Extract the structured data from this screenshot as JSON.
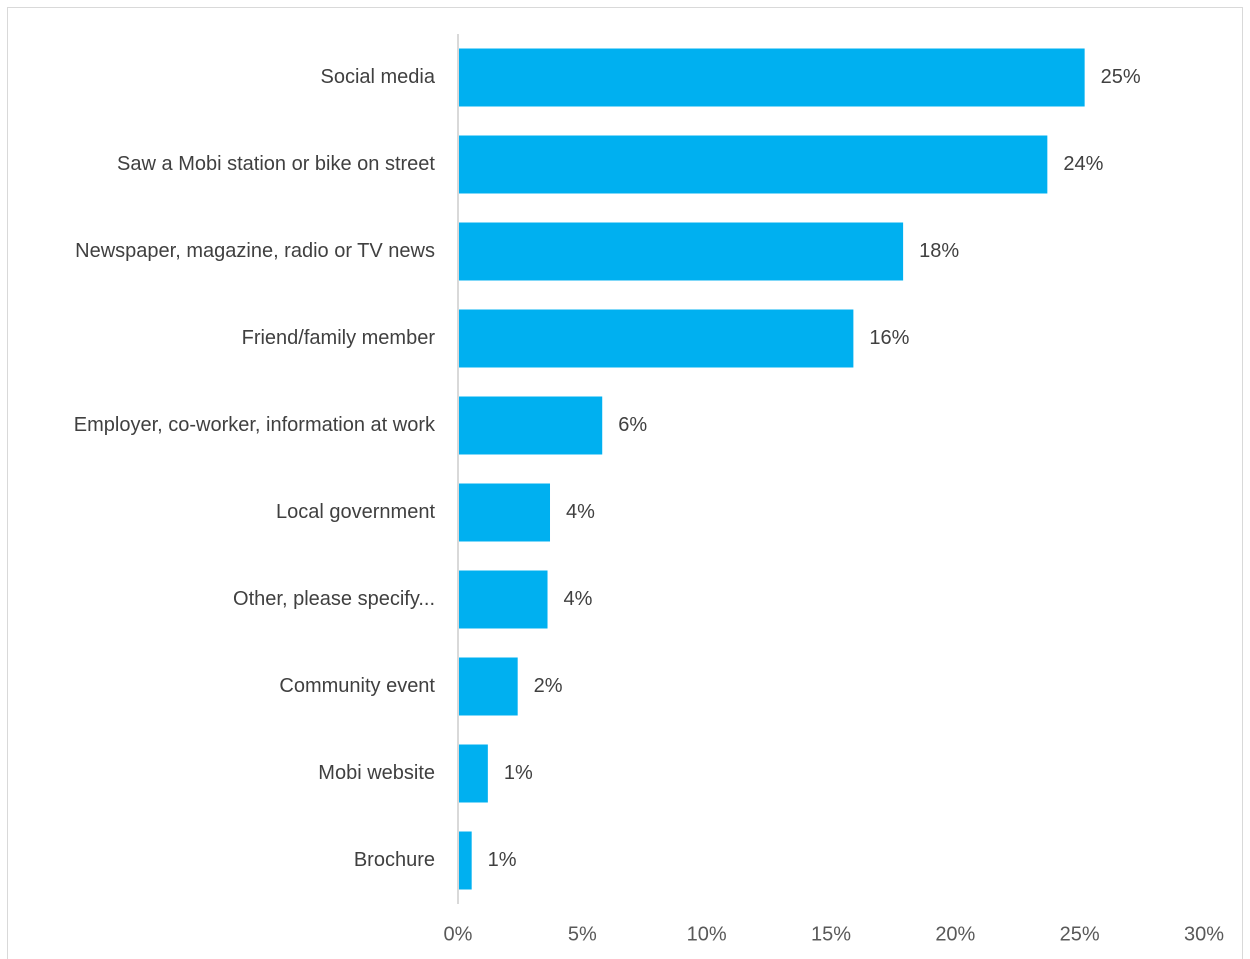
{
  "chart_data": {
    "type": "bar",
    "orientation": "horizontal",
    "title": "",
    "xlabel": "",
    "ylabel": "",
    "categories": [
      "Social media",
      "Saw a Mobi station or bike on street",
      "Newspaper, magazine, radio or TV news",
      "Friend/family member",
      "Employer, co-worker, information at work",
      "Local government",
      "Other, please specify...",
      "Community event",
      "Mobi website",
      "Brochure"
    ],
    "values": [
      25.2,
      23.7,
      17.9,
      15.9,
      5.8,
      3.7,
      3.6,
      2.4,
      1.2,
      0.55
    ],
    "value_labels": [
      "25%",
      "24%",
      "18%",
      "16%",
      "6%",
      "4%",
      "4%",
      "2%",
      "1%",
      "1%"
    ],
    "xlim": [
      0,
      30
    ],
    "x_ticks": [
      0,
      5,
      10,
      15,
      20,
      25,
      30
    ],
    "x_tick_labels": [
      "0%",
      "5%",
      "10%",
      "15%",
      "20%",
      "25%",
      "30%"
    ],
    "grid": false,
    "legend": "none",
    "bar_color": "#00B0F0",
    "axis_color": "#d9d9d9"
  }
}
